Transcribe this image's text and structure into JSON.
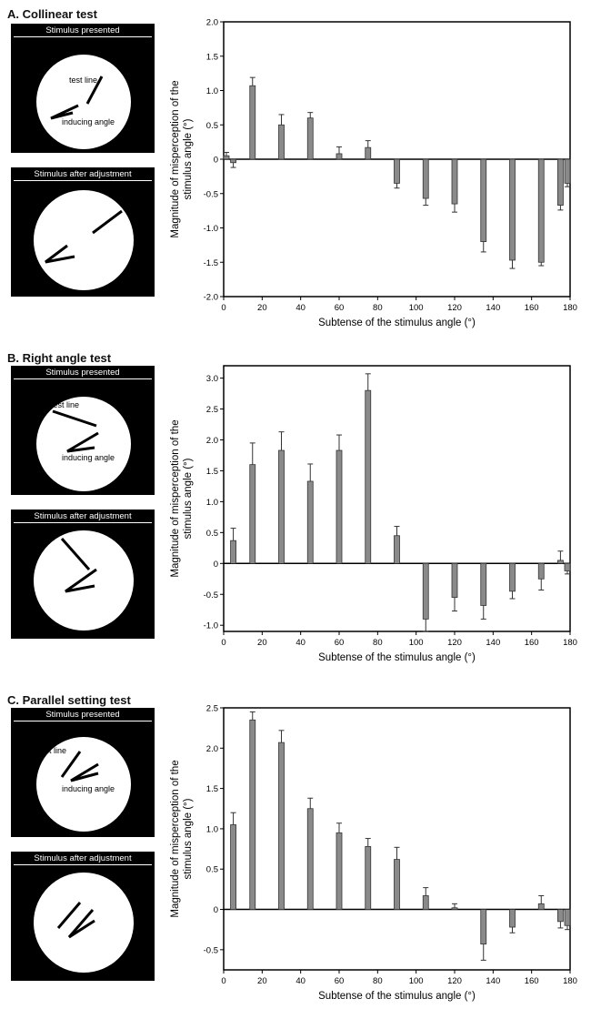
{
  "panels": [
    {
      "title": "A. Collinear test",
      "stim_top_label": "Stimulus presented",
      "stim_bottom_label": "Stimulus after adjustment",
      "test_line_label": "test line",
      "inducing_angle_label": "inducing angle"
    },
    {
      "title": "B. Right angle test",
      "stim_top_label": "Stimulus presented",
      "stim_bottom_label": "Stimulus after adjustment",
      "test_line_label": "test line",
      "inducing_angle_label": "inducing angle"
    },
    {
      "title": "C. Parallel setting test",
      "stim_top_label": "Stimulus presented",
      "stim_bottom_label": "Stimulus after adjustment",
      "test_line_label": "test line",
      "inducing_angle_label": "inducing angle"
    }
  ],
  "chart_data": [
    {
      "type": "bar",
      "xlabel": "Subtense of the stimulus angle (°)",
      "ylabel": "Magnitude of misperception of the stimulus angle (°)",
      "xlim": [
        0,
        180
      ],
      "ylim": [
        -2.0,
        2.0
      ],
      "xticks": [
        0,
        20,
        40,
        60,
        80,
        100,
        120,
        140,
        160,
        180
      ],
      "yticks": [
        -2.0,
        -1.5,
        -1.0,
        -0.5,
        0,
        0.5,
        1.0,
        1.5,
        2.0
      ],
      "ytick_labels": [
        "-2.0",
        "-1.5",
        "-1.0",
        "-0.5",
        "0",
        "0.5",
        "1.0",
        "1.5",
        "2.0"
      ],
      "x": [
        0,
        5,
        15,
        30,
        45,
        60,
        75,
        90,
        105,
        120,
        135,
        150,
        165,
        175,
        180
      ],
      "values": [
        0.05,
        -0.05,
        1.07,
        0.5,
        0.6,
        0.08,
        0.17,
        -0.35,
        -0.57,
        -0.65,
        -1.2,
        -1.47,
        -1.5,
        -0.67,
        -0.35
      ],
      "errors": [
        0.05,
        0.07,
        0.12,
        0.15,
        0.08,
        0.1,
        0.1,
        0.07,
        0.1,
        0.12,
        0.15,
        0.12,
        0.05,
        0.07,
        0.05
      ],
      "grid": false
    },
    {
      "type": "bar",
      "xlabel": "Subtense of the stimulus angle (°)",
      "ylabel": "Magnitude of misperception of the stimulus angle (°)",
      "xlim": [
        0,
        180
      ],
      "ylim": [
        -1.1,
        3.2
      ],
      "xticks": [
        0,
        20,
        40,
        60,
        80,
        100,
        120,
        140,
        160,
        180
      ],
      "yticks": [
        -1.0,
        -0.5,
        0,
        0.5,
        1.0,
        1.5,
        2.0,
        2.5,
        3.0
      ],
      "ytick_labels": [
        "-1.0",
        "-0.5",
        "0",
        "0.5",
        "1.0",
        "1.5",
        "2.0",
        "2.5",
        "3.0"
      ],
      "x": [
        5,
        15,
        30,
        45,
        60,
        75,
        90,
        105,
        120,
        135,
        150,
        165,
        175,
        180
      ],
      "values": [
        0.37,
        1.6,
        1.83,
        1.33,
        1.83,
        2.8,
        0.45,
        -0.9,
        -0.55,
        -0.68,
        -0.45,
        -0.25,
        0.05,
        -0.12
      ],
      "errors": [
        0.2,
        0.35,
        0.3,
        0.28,
        0.25,
        0.27,
        0.15,
        0.2,
        0.22,
        0.22,
        0.12,
        0.18,
        0.15,
        0.05
      ],
      "grid": false
    },
    {
      "type": "bar",
      "xlabel": "Subtense of the stimulus angle (°)",
      "ylabel": "Magnitude of misperception of the stimulus angle (°)",
      "xlim": [
        0,
        180
      ],
      "ylim": [
        -0.75,
        2.5
      ],
      "xticks": [
        0,
        20,
        40,
        60,
        80,
        100,
        120,
        140,
        160,
        180
      ],
      "yticks": [
        -0.5,
        0,
        0.5,
        1.0,
        1.5,
        2.0,
        2.5
      ],
      "ytick_labels": [
        "-0.5",
        "0",
        "0.5",
        "1.0",
        "1.5",
        "2.0",
        "2.5"
      ],
      "x": [
        5,
        15,
        30,
        45,
        60,
        75,
        90,
        105,
        120,
        135,
        150,
        165,
        175,
        180
      ],
      "values": [
        1.05,
        2.35,
        2.07,
        1.25,
        0.95,
        0.78,
        0.62,
        0.17,
        0.02,
        -0.43,
        -0.22,
        0.07,
        -0.15,
        -0.2
      ],
      "errors": [
        0.15,
        0.1,
        0.15,
        0.13,
        0.12,
        0.1,
        0.15,
        0.1,
        0.05,
        0.2,
        0.07,
        0.1,
        0.08,
        0.05
      ],
      "grid": false
    }
  ],
  "colors": {
    "bar_fill": "#8a8a8a",
    "bar_stroke": "#333333",
    "axis": "#000000",
    "stimulus_bg": "#000000",
    "stimulus_circle": "#ffffff"
  }
}
